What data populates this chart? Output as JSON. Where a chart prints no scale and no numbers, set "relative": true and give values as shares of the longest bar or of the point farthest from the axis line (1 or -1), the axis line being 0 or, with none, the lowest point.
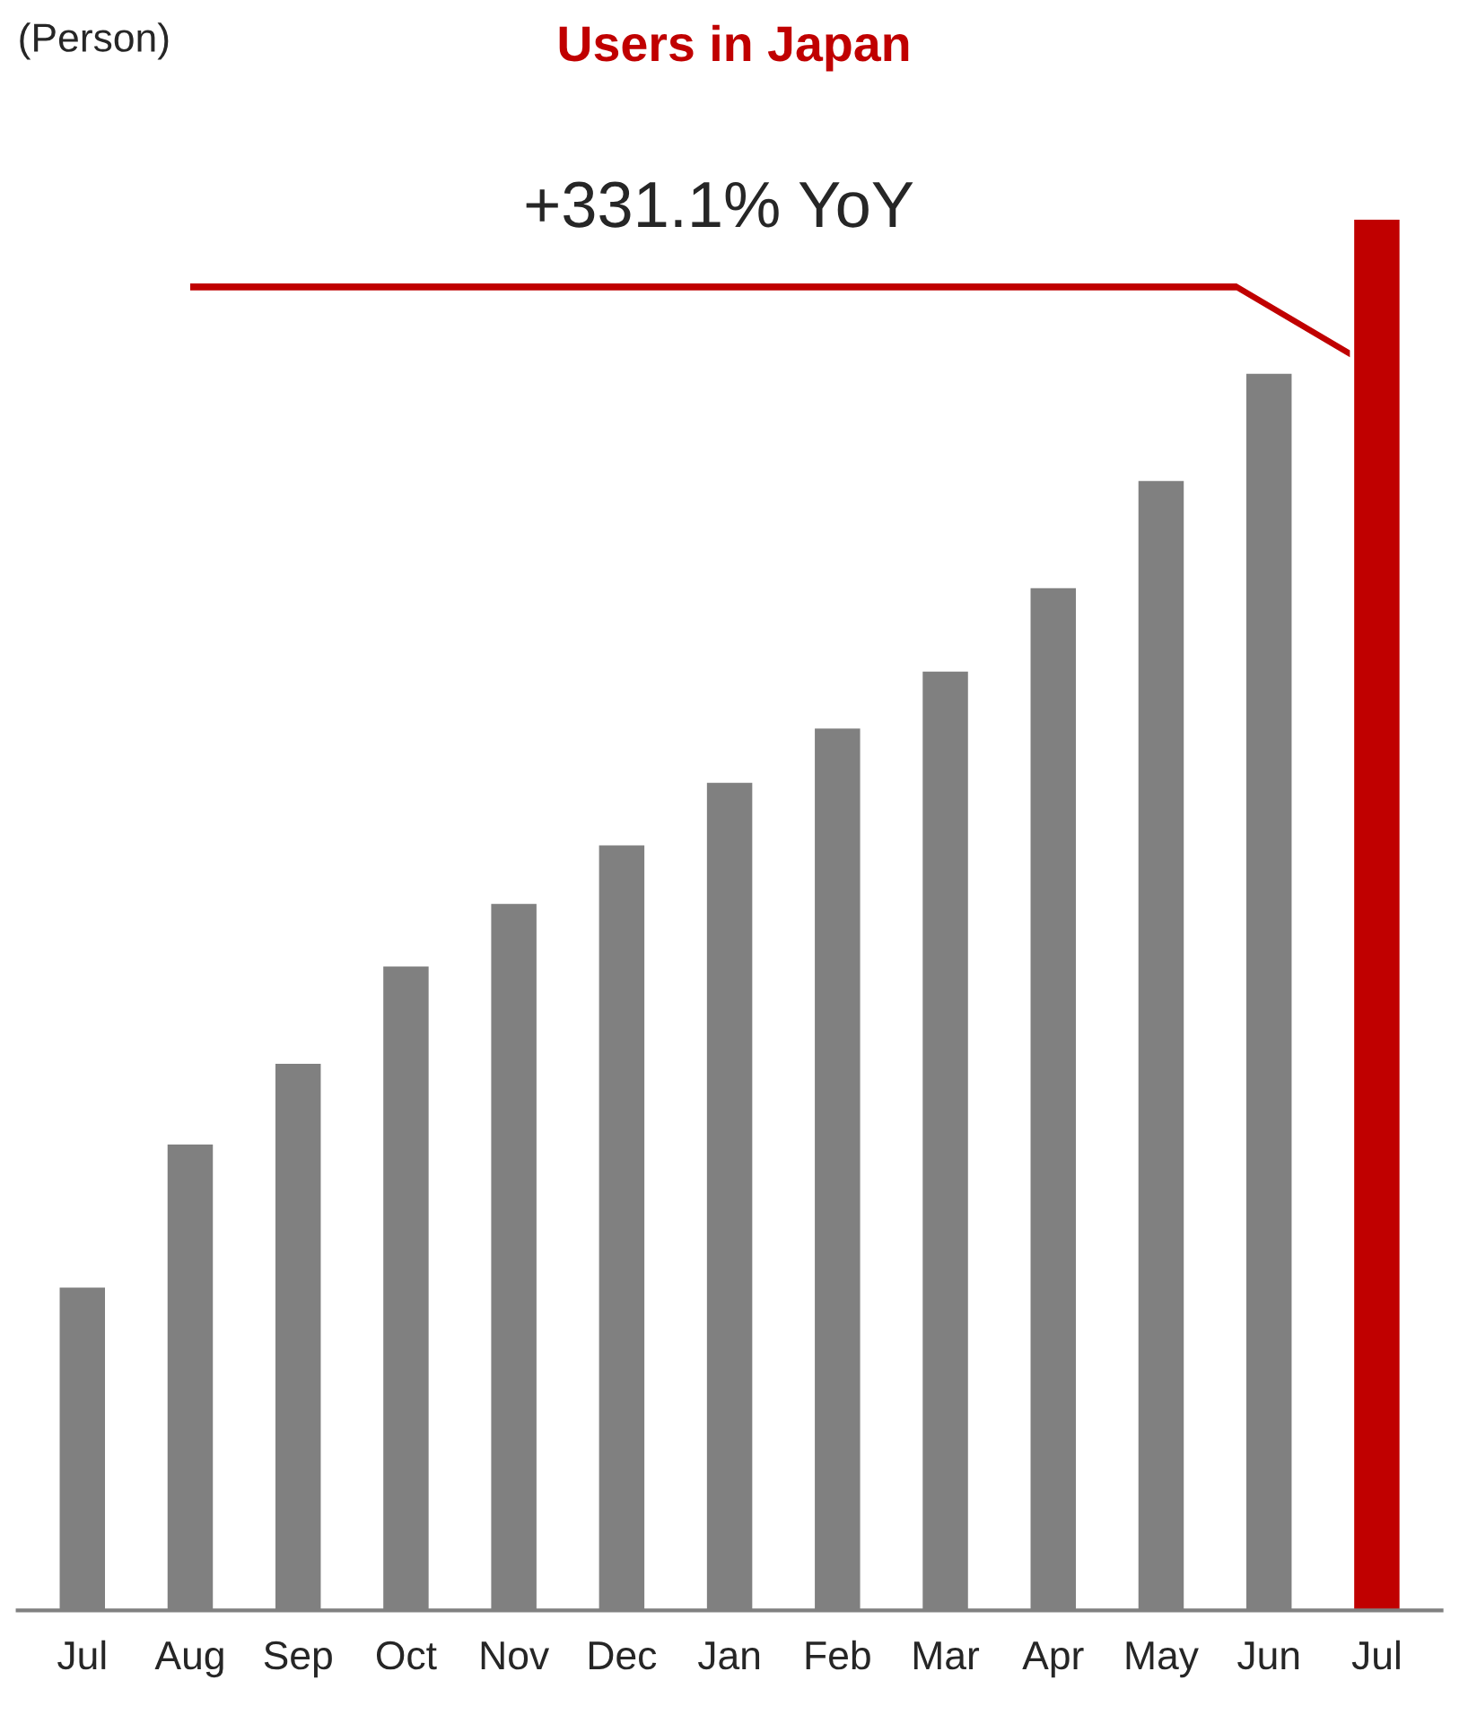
{
  "chart_data": {
    "type": "bar",
    "title": "Users in Japan",
    "ylabel": "(Person)",
    "relative": true,
    "categories": [
      "Jul",
      "Aug",
      "Sep",
      "Oct",
      "Nov",
      "Dec",
      "Jan",
      "Feb",
      "Mar",
      "Apr",
      "May",
      "Jun",
      "Jul"
    ],
    "values": [
      0.232,
      0.335,
      0.393,
      0.463,
      0.508,
      0.55,
      0.595,
      0.634,
      0.675,
      0.735,
      0.812,
      0.889,
      1
    ],
    "colors": [
      "#808080",
      "#808080",
      "#808080",
      "#808080",
      "#808080",
      "#808080",
      "#808080",
      "#808080",
      "#808080",
      "#808080",
      "#808080",
      "#808080",
      "#c00000"
    ],
    "annotations": [
      "+331.1% YoY"
    ],
    "grid": false
  }
}
